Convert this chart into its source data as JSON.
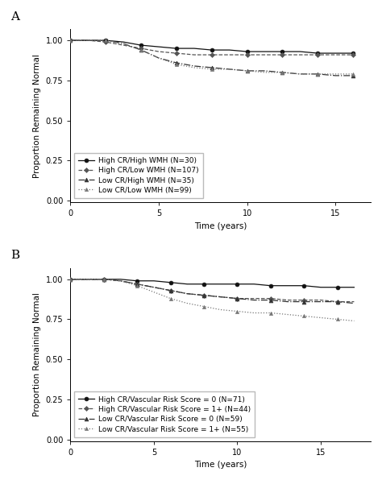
{
  "panel_A": {
    "title": "A",
    "xlabel": "Time (years)",
    "ylabel": "Proportion Remaining Normal",
    "xlim": [
      0,
      17
    ],
    "ylim": [
      -0.01,
      1.07
    ],
    "yticks": [
      0.0,
      0.25,
      0.5,
      0.75,
      1.0
    ],
    "xticks": [
      0,
      5,
      10,
      15
    ],
    "series": [
      {
        "label": "High CR/High WMH (N=30)",
        "color": "#111111",
        "linestyle": "-",
        "marker": "o",
        "markersize": 3.5,
        "markerfacecolor": "#111111",
        "markeredgecolor": "#111111",
        "x": [
          0,
          1,
          2,
          3,
          4,
          5,
          6,
          7,
          8,
          9,
          10,
          11,
          12,
          13,
          14,
          15,
          16
        ],
        "y": [
          1.0,
          1.0,
          1.0,
          0.99,
          0.97,
          0.96,
          0.95,
          0.95,
          0.94,
          0.94,
          0.93,
          0.93,
          0.93,
          0.93,
          0.92,
          0.92,
          0.92
        ]
      },
      {
        "label": "High CR/Low WMH (N=107)",
        "color": "#555555",
        "linestyle": "--",
        "marker": "D",
        "markersize": 3,
        "markerfacecolor": "#555555",
        "markeredgecolor": "#555555",
        "x": [
          0,
          1,
          2,
          3,
          4,
          5,
          6,
          7,
          8,
          9,
          10,
          11,
          12,
          13,
          14,
          15,
          16
        ],
        "y": [
          1.0,
          1.0,
          0.99,
          0.97,
          0.95,
          0.93,
          0.92,
          0.91,
          0.91,
          0.91,
          0.91,
          0.91,
          0.91,
          0.91,
          0.91,
          0.91,
          0.91
        ]
      },
      {
        "label": "Low CR/High WMH (N=35)",
        "color": "#333333",
        "linestyle": "-.",
        "marker": "^",
        "markersize": 3.5,
        "markerfacecolor": "#333333",
        "markeredgecolor": "#333333",
        "x": [
          0,
          1,
          2,
          3,
          4,
          5,
          6,
          7,
          8,
          9,
          10,
          11,
          12,
          13,
          14,
          15,
          16
        ],
        "y": [
          1.0,
          1.0,
          1.0,
          0.98,
          0.94,
          0.89,
          0.86,
          0.84,
          0.83,
          0.82,
          0.81,
          0.81,
          0.8,
          0.79,
          0.79,
          0.78,
          0.78
        ]
      },
      {
        "label": "Low CR/Low WMH (N=99)",
        "color": "#777777",
        "linestyle": ":",
        "marker": "^",
        "markersize": 3,
        "markerfacecolor": "#777777",
        "markeredgecolor": "#777777",
        "x": [
          0,
          1,
          2,
          3,
          4,
          5,
          6,
          7,
          8,
          9,
          10,
          11,
          12,
          13,
          14,
          15,
          16
        ],
        "y": [
          1.0,
          1.0,
          1.0,
          0.98,
          0.94,
          0.89,
          0.85,
          0.83,
          0.82,
          0.82,
          0.81,
          0.8,
          0.8,
          0.79,
          0.79,
          0.79,
          0.79
        ]
      }
    ]
  },
  "panel_B": {
    "title": "B",
    "xlabel": "Time (years)",
    "ylabel": "Proportion Remaining Normal",
    "xlim": [
      0,
      18
    ],
    "ylim": [
      -0.01,
      1.07
    ],
    "yticks": [
      0.0,
      0.25,
      0.5,
      0.75,
      1.0
    ],
    "xticks": [
      0,
      5,
      10,
      15
    ],
    "series": [
      {
        "label": "High CR/Vascular Risk Score = 0 (N=71)",
        "color": "#111111",
        "linestyle": "-",
        "marker": "o",
        "markersize": 3.5,
        "markerfacecolor": "#111111",
        "markeredgecolor": "#111111",
        "x": [
          0,
          1,
          2,
          3,
          4,
          5,
          6,
          7,
          8,
          9,
          10,
          11,
          12,
          13,
          14,
          15,
          16,
          17
        ],
        "y": [
          1.0,
          1.0,
          1.0,
          1.0,
          0.99,
          0.99,
          0.98,
          0.97,
          0.97,
          0.97,
          0.97,
          0.97,
          0.96,
          0.96,
          0.96,
          0.95,
          0.95,
          0.95
        ]
      },
      {
        "label": "High CR/Vascular Risk Score = 1+ (N=44)",
        "color": "#555555",
        "linestyle": "--",
        "marker": "D",
        "markersize": 3,
        "markerfacecolor": "#555555",
        "markeredgecolor": "#555555",
        "x": [
          0,
          1,
          2,
          3,
          4,
          5,
          6,
          7,
          8,
          9,
          10,
          11,
          12,
          13,
          14,
          15,
          16,
          17
        ],
        "y": [
          1.0,
          1.0,
          1.0,
          0.99,
          0.97,
          0.95,
          0.93,
          0.91,
          0.9,
          0.89,
          0.88,
          0.88,
          0.88,
          0.87,
          0.87,
          0.87,
          0.86,
          0.86
        ]
      },
      {
        "label": "Low CR/Vascular Risk Score = 0 (N=59)",
        "color": "#333333",
        "linestyle": "-.",
        "marker": "^",
        "markersize": 3.5,
        "markerfacecolor": "#333333",
        "markeredgecolor": "#333333",
        "x": [
          0,
          1,
          2,
          3,
          4,
          5,
          6,
          7,
          8,
          9,
          10,
          11,
          12,
          13,
          14,
          15,
          16,
          17
        ],
        "y": [
          1.0,
          1.0,
          1.0,
          0.99,
          0.97,
          0.95,
          0.93,
          0.91,
          0.9,
          0.89,
          0.88,
          0.87,
          0.87,
          0.86,
          0.86,
          0.86,
          0.86,
          0.85
        ]
      },
      {
        "label": "Low CR/Vascular Risk Score = 1+ (N=55)",
        "color": "#777777",
        "linestyle": ":",
        "marker": "^",
        "markersize": 3,
        "markerfacecolor": "#777777",
        "markeredgecolor": "#777777",
        "x": [
          0,
          1,
          2,
          3,
          4,
          5,
          6,
          7,
          8,
          9,
          10,
          11,
          12,
          13,
          14,
          15,
          16,
          17
        ],
        "y": [
          1.0,
          1.0,
          1.0,
          0.99,
          0.96,
          0.92,
          0.88,
          0.85,
          0.83,
          0.81,
          0.8,
          0.79,
          0.79,
          0.78,
          0.77,
          0.76,
          0.75,
          0.74
        ]
      }
    ]
  },
  "background_color": "#ffffff",
  "label_fontsize": 7.5,
  "tick_fontsize": 7,
  "legend_fontsize": 6.5,
  "panel_label_fontsize": 11,
  "linewidth": 0.9,
  "marker_every": 2
}
